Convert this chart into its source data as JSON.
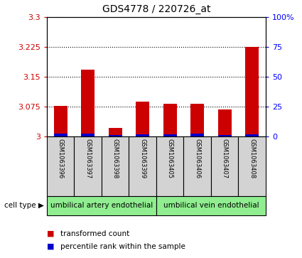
{
  "title": "GDS4778 / 220726_at",
  "samples": [
    "GSM1063396",
    "GSM1063397",
    "GSM1063398",
    "GSM1063399",
    "GSM1063405",
    "GSM1063406",
    "GSM1063407",
    "GSM1063408"
  ],
  "red_values": [
    3.077,
    3.168,
    3.022,
    3.088,
    3.082,
    3.082,
    3.068,
    3.225
  ],
  "blue_values": [
    3.007,
    3.008,
    3.005,
    3.006,
    3.006,
    3.007,
    3.004,
    3.006
  ],
  "ylim": [
    3.0,
    3.3
  ],
  "yticks": [
    3.0,
    3.075,
    3.15,
    3.225,
    3.3
  ],
  "ytick_labels": [
    "3",
    "3.075",
    "3.15",
    "3.225",
    "3.3"
  ],
  "right_yticks": [
    0,
    25,
    50,
    75,
    100
  ],
  "right_ytick_labels": [
    "0",
    "25",
    "50",
    "75",
    "100%"
  ],
  "cell_type_groups": [
    {
      "label": "umbilical artery endothelial",
      "start": 0,
      "end": 3,
      "color": "#90EE90"
    },
    {
      "label": "umbilical vein endothelial",
      "start": 4,
      "end": 7,
      "color": "#90EE90"
    }
  ],
  "cell_type_label": "cell type",
  "legend_red": "transformed count",
  "legend_blue": "percentile rank within the sample",
  "bar_color_red": "#CC0000",
  "bar_color_blue": "#0000CC",
  "bg_color_xticklabels": "#D3D3D3",
  "bar_width": 0.5,
  "base_value": 3.0
}
